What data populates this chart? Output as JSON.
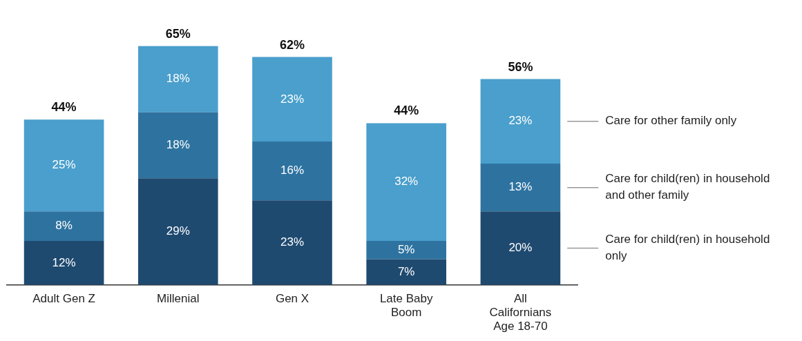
{
  "chart_data": {
    "type": "bar",
    "stacked": true,
    "legend": "right",
    "grid": false,
    "categories": [
      "Adult Gen Z",
      "Millenial",
      "Gen X",
      "Late Baby Boom",
      "All Californians Age 18-70"
    ],
    "series": [
      {
        "name": "Care for child(ren) in household only",
        "color": "#1f4a70",
        "values": [
          12,
          29,
          23,
          7,
          20
        ],
        "value_labels": [
          "12%",
          "29%",
          "23%",
          "7%",
          "20%"
        ]
      },
      {
        "name": "Care for child(ren) in household and other family",
        "color": "#2e73a0",
        "values": [
          8,
          18,
          16,
          5,
          13
        ],
        "value_labels": [
          "8%",
          "18%",
          "16%",
          "5%",
          "13%"
        ]
      },
      {
        "name": "Care for other family only",
        "color": "#4a9fcc",
        "values": [
          25,
          18,
          23,
          32,
          23
        ],
        "value_labels": [
          "25%",
          "18%",
          "23%",
          "32%",
          "23%"
        ]
      }
    ],
    "totals": [
      "44%",
      "65%",
      "62%",
      "44%",
      "56%"
    ]
  }
}
